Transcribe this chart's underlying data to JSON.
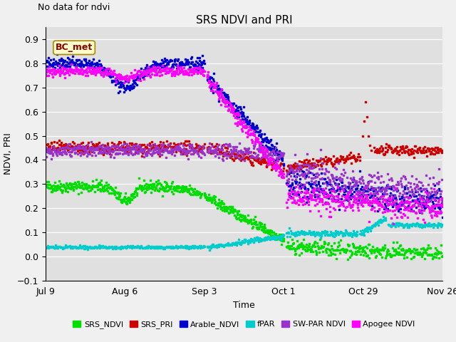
{
  "title": "SRS NDVI and PRI",
  "no_data_text": "No data for ndvi",
  "xlabel": "Time",
  "ylabel": "NDVI, PRI",
  "xlim_days": [
    0,
    140
  ],
  "ylim": [
    -0.1,
    0.95
  ],
  "yticks": [
    -0.1,
    0.0,
    0.1,
    0.2,
    0.3,
    0.4,
    0.5,
    0.6,
    0.7,
    0.8,
    0.9
  ],
  "xtick_labels": [
    "Jul 9",
    "Aug 6",
    "Sep 3",
    "Oct 1",
    "Oct 29",
    "Nov 26"
  ],
  "xtick_positions": [
    0,
    28,
    56,
    84,
    112,
    140
  ],
  "annotation_text": "BC_met",
  "plot_bg_color": "#e0e0e0",
  "fig_bg_color": "#f0f0f0",
  "legend_entries": [
    {
      "label": "SRS_NDVI",
      "color": "#00dd00"
    },
    {
      "label": "SRS_PRI",
      "color": "#cc0000"
    },
    {
      "label": "Arable_NDVI",
      "color": "#0000cc"
    },
    {
      "label": "fPAR",
      "color": "#00cccc"
    },
    {
      "label": "SW-PAR NDVI",
      "color": "#9933cc"
    },
    {
      "label": "Apogee NDVI",
      "color": "#ff00ff"
    }
  ],
  "series": {
    "SRS_NDVI": {
      "color": "#00dd00",
      "marker": "s",
      "ms": 1.8
    },
    "SRS_PRI": {
      "color": "#cc0000",
      "marker": "s",
      "ms": 1.8
    },
    "Arable_NDVI": {
      "color": "#0000cc",
      "marker": "s",
      "ms": 1.8
    },
    "fPAR": {
      "color": "#00cccc",
      "marker": "s",
      "ms": 1.8
    },
    "SW_PAR_NDVI": {
      "color": "#9933cc",
      "marker": "s",
      "ms": 1.8
    },
    "Apogee_NDVI": {
      "color": "#ff00ff",
      "marker": "s",
      "ms": 1.8
    }
  }
}
